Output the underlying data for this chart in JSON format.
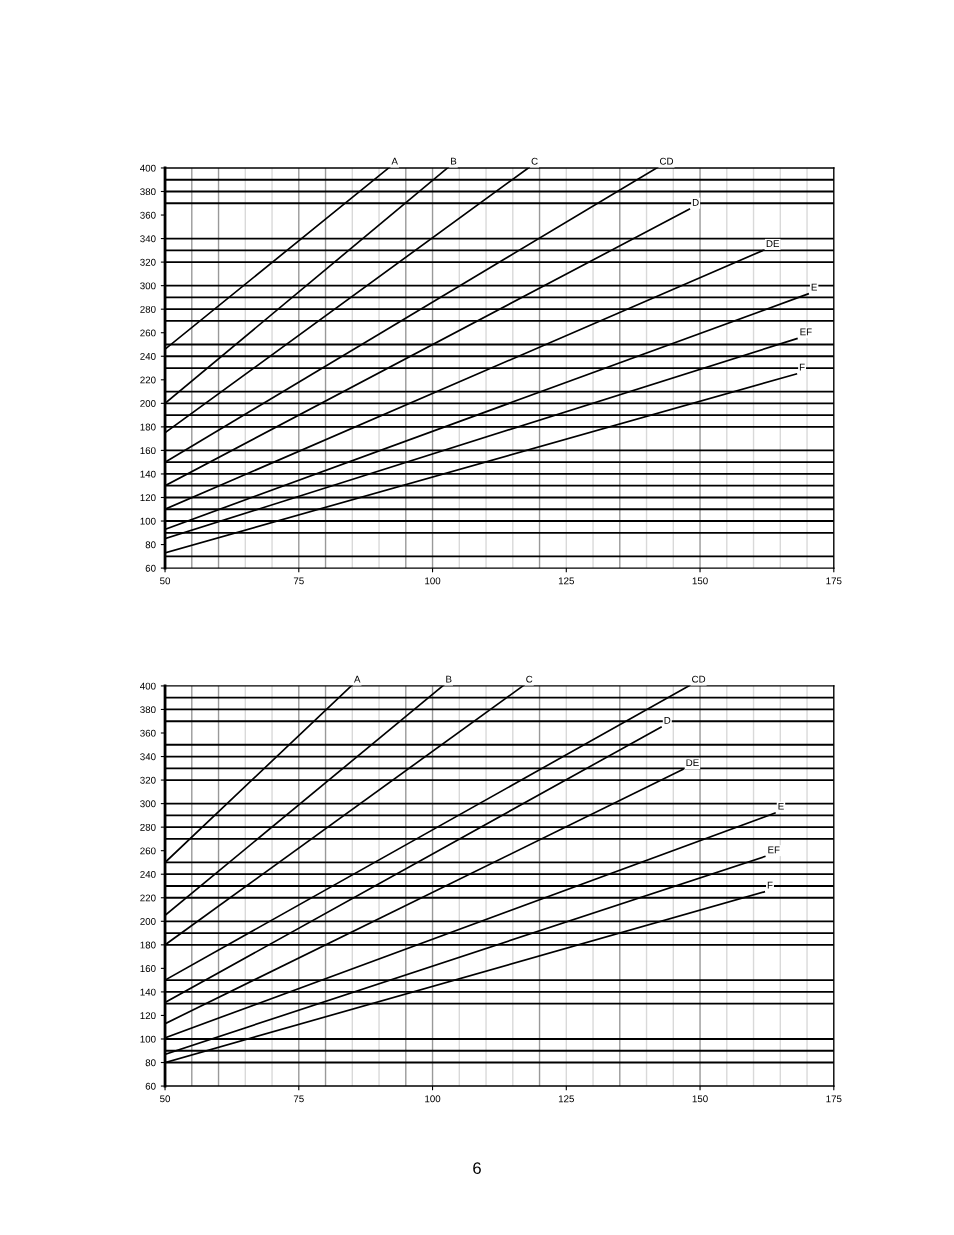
{
  "chart_data": [
    {
      "type": "line",
      "xlim": [
        50,
        175
      ],
      "xticks": [
        50,
        75,
        100,
        125,
        150,
        175
      ],
      "ylim": [
        60,
        400
      ],
      "yticks": [
        60,
        80,
        100,
        120,
        140,
        160,
        180,
        200,
        220,
        240,
        260,
        280,
        300,
        320,
        340,
        360,
        380,
        400
      ],
      "grid": false,
      "legend": false,
      "marker": "none",
      "line_style": "solid",
      "series": [
        {
          "name": "A",
          "color": "#000000",
          "x": [
            50,
            91.8
          ],
          "values": [
            246,
            400
          ]
        },
        {
          "name": "B",
          "color": "#000000",
          "x": [
            50,
            102.8
          ],
          "values": [
            200,
            400
          ]
        },
        {
          "name": "C",
          "color": "#000000",
          "x": [
            50,
            117.9
          ],
          "values": [
            175,
            400
          ]
        },
        {
          "name": "CD",
          "color": "#000000",
          "x": [
            50,
            141.9
          ],
          "values": [
            150,
            400
          ]
        },
        {
          "name": "D",
          "color": "#000000",
          "x": [
            50,
            148
          ],
          "values": [
            130,
            365
          ]
        },
        {
          "name": "DE",
          "color": "#000000",
          "x": [
            50,
            161.8
          ],
          "values": [
            110,
            330
          ]
        },
        {
          "name": "E",
          "color": "#000000",
          "x": [
            50,
            170.2
          ],
          "values": [
            93,
            293
          ]
        },
        {
          "name": "EF",
          "color": "#000000",
          "x": [
            50,
            168.1
          ],
          "values": [
            85,
            255
          ]
        },
        {
          "name": "F",
          "color": "#000000",
          "x": [
            50,
            168
          ],
          "values": [
            73,
            225
          ]
        }
      ],
      "ref_lines": [
        {
          "axis": "x",
          "value": 55,
          "color": "#999999"
        },
        {
          "axis": "x",
          "value": 60,
          "color": "#999999"
        },
        {
          "axis": "x",
          "value": 65,
          "color": "#d9d9d9"
        },
        {
          "axis": "x",
          "value": 70,
          "color": "#d9d9d9"
        },
        {
          "axis": "x",
          "value": 75,
          "color": "#999999"
        },
        {
          "axis": "x",
          "value": 80,
          "color": "#999999"
        },
        {
          "axis": "x",
          "value": 85,
          "color": "#d9d9d9"
        },
        {
          "axis": "x",
          "value": 90,
          "color": "#d9d9d9"
        },
        {
          "axis": "x",
          "value": 95,
          "color": "#999999"
        },
        {
          "axis": "x",
          "value": 100,
          "color": "#999999"
        },
        {
          "axis": "x",
          "value": 105,
          "color": "#d9d9d9"
        },
        {
          "axis": "x",
          "value": 110,
          "color": "#d9d9d9"
        },
        {
          "axis": "x",
          "value": 115,
          "color": "#d9d9d9"
        },
        {
          "axis": "x",
          "value": 120,
          "color": "#999999"
        },
        {
          "axis": "x",
          "value": 125,
          "color": "#d9d9d9"
        },
        {
          "axis": "x",
          "value": 130,
          "color": "#d9d9d9"
        },
        {
          "axis": "x",
          "value": 135,
          "color": "#999999"
        },
        {
          "axis": "x",
          "value": 140,
          "color": "#d9d9d9"
        },
        {
          "axis": "x",
          "value": 145,
          "color": "#d9d9d9"
        },
        {
          "axis": "x",
          "value": 150,
          "color": "#999999"
        },
        {
          "axis": "x",
          "value": 155,
          "color": "#d9d9d9"
        },
        {
          "axis": "x",
          "value": 160,
          "color": "#d9d9d9"
        },
        {
          "axis": "x",
          "value": 165,
          "color": "#d9d9d9"
        },
        {
          "axis": "x",
          "value": 170,
          "color": "#d9d9d9"
        },
        {
          "axis": "y",
          "value": 70,
          "color": "#000000"
        },
        {
          "axis": "y",
          "value": 90,
          "color": "#000000"
        },
        {
          "axis": "y",
          "value": 100,
          "color": "#000000"
        },
        {
          "axis": "y",
          "value": 110,
          "color": "#000000"
        },
        {
          "axis": "y",
          "value": 120,
          "color": "#000000"
        },
        {
          "axis": "y",
          "value": 130,
          "color": "#000000"
        },
        {
          "axis": "y",
          "value": 140,
          "color": "#000000"
        },
        {
          "axis": "y",
          "value": 150,
          "color": "#000000"
        },
        {
          "axis": "y",
          "value": 160,
          "color": "#000000"
        },
        {
          "axis": "y",
          "value": 180,
          "color": "#000000"
        },
        {
          "axis": "y",
          "value": 190,
          "color": "#000000"
        },
        {
          "axis": "y",
          "value": 200,
          "color": "#000000"
        },
        {
          "axis": "y",
          "value": 210,
          "color": "#000000"
        },
        {
          "axis": "y",
          "value": 230,
          "color": "#000000"
        },
        {
          "axis": "y",
          "value": 240,
          "color": "#000000"
        },
        {
          "axis": "y",
          "value": 250,
          "color": "#000000"
        },
        {
          "axis": "y",
          "value": 270,
          "color": "#000000"
        },
        {
          "axis": "y",
          "value": 280,
          "color": "#000000"
        },
        {
          "axis": "y",
          "value": 290,
          "color": "#000000"
        },
        {
          "axis": "y",
          "value": 300,
          "color": "#000000"
        },
        {
          "axis": "y",
          "value": 320,
          "color": "#000000"
        },
        {
          "axis": "y",
          "value": 330,
          "color": "#000000"
        },
        {
          "axis": "y",
          "value": 340,
          "color": "#000000"
        },
        {
          "axis": "y",
          "value": 370,
          "color": "#000000"
        },
        {
          "axis": "y",
          "value": 380,
          "color": "#000000"
        },
        {
          "axis": "y",
          "value": 390,
          "color": "#000000"
        }
      ]
    },
    {
      "type": "line",
      "xlim": [
        50,
        175
      ],
      "xticks": [
        50,
        75,
        100,
        125,
        150,
        175
      ],
      "ylim": [
        60,
        400
      ],
      "yticks": [
        60,
        80,
        100,
        120,
        140,
        160,
        180,
        200,
        220,
        240,
        260,
        280,
        300,
        320,
        340,
        360,
        380,
        400
      ],
      "grid": false,
      "legend": false,
      "marker": "none",
      "line_style": "solid",
      "series": [
        {
          "name": "A",
          "color": "#000000",
          "x": [
            50,
            84.8
          ],
          "values": [
            250,
            400
          ]
        },
        {
          "name": "B",
          "color": "#000000",
          "x": [
            50,
            101.9
          ],
          "values": [
            205,
            400
          ]
        },
        {
          "name": "C",
          "color": "#000000",
          "x": [
            50,
            116.9
          ],
          "values": [
            180,
            400
          ]
        },
        {
          "name": "CD",
          "color": "#000000",
          "x": [
            50,
            147.9
          ],
          "values": [
            150,
            400
          ]
        },
        {
          "name": "D",
          "color": "#000000",
          "x": [
            50,
            142.7
          ],
          "values": [
            131,
            365
          ]
        },
        {
          "name": "DE",
          "color": "#000000",
          "x": [
            50,
            146.8
          ],
          "values": [
            113,
            329
          ]
        },
        {
          "name": "E",
          "color": "#000000",
          "x": [
            50,
            164
          ],
          "values": [
            101,
            292
          ]
        },
        {
          "name": "EF",
          "color": "#000000",
          "x": [
            50,
            162.1
          ],
          "values": [
            87,
            255
          ]
        },
        {
          "name": "F",
          "color": "#000000",
          "x": [
            50,
            162
          ],
          "values": [
            80,
            225
          ]
        }
      ],
      "ref_lines": [
        {
          "axis": "x",
          "value": 55,
          "color": "#999999"
        },
        {
          "axis": "x",
          "value": 60,
          "color": "#999999"
        },
        {
          "axis": "x",
          "value": 65,
          "color": "#d9d9d9"
        },
        {
          "axis": "x",
          "value": 70,
          "color": "#d9d9d9"
        },
        {
          "axis": "x",
          "value": 75,
          "color": "#999999"
        },
        {
          "axis": "x",
          "value": 80,
          "color": "#999999"
        },
        {
          "axis": "x",
          "value": 85,
          "color": "#d9d9d9"
        },
        {
          "axis": "x",
          "value": 90,
          "color": "#d9d9d9"
        },
        {
          "axis": "x",
          "value": 95,
          "color": "#999999"
        },
        {
          "axis": "x",
          "value": 100,
          "color": "#999999"
        },
        {
          "axis": "x",
          "value": 105,
          "color": "#d9d9d9"
        },
        {
          "axis": "x",
          "value": 110,
          "color": "#d9d9d9"
        },
        {
          "axis": "x",
          "value": 115,
          "color": "#d9d9d9"
        },
        {
          "axis": "x",
          "value": 120,
          "color": "#999999"
        },
        {
          "axis": "x",
          "value": 125,
          "color": "#d9d9d9"
        },
        {
          "axis": "x",
          "value": 130,
          "color": "#d9d9d9"
        },
        {
          "axis": "x",
          "value": 135,
          "color": "#999999"
        },
        {
          "axis": "x",
          "value": 140,
          "color": "#d9d9d9"
        },
        {
          "axis": "x",
          "value": 145,
          "color": "#d9d9d9"
        },
        {
          "axis": "x",
          "value": 150,
          "color": "#999999"
        },
        {
          "axis": "x",
          "value": 155,
          "color": "#d9d9d9"
        },
        {
          "axis": "x",
          "value": 160,
          "color": "#d9d9d9"
        },
        {
          "axis": "x",
          "value": 165,
          "color": "#d9d9d9"
        },
        {
          "axis": "x",
          "value": 170,
          "color": "#d9d9d9"
        },
        {
          "axis": "y",
          "value": 80,
          "color": "#000000"
        },
        {
          "axis": "y",
          "value": 90,
          "color": "#000000"
        },
        {
          "axis": "y",
          "value": 100,
          "color": "#000000"
        },
        {
          "axis": "y",
          "value": 130,
          "color": "#000000"
        },
        {
          "axis": "y",
          "value": 140,
          "color": "#000000"
        },
        {
          "axis": "y",
          "value": 150,
          "color": "#000000"
        },
        {
          "axis": "y",
          "value": 180,
          "color": "#000000"
        },
        {
          "axis": "y",
          "value": 190,
          "color": "#000000"
        },
        {
          "axis": "y",
          "value": 200,
          "color": "#000000"
        },
        {
          "axis": "y",
          "value": 220,
          "color": "#000000"
        },
        {
          "axis": "y",
          "value": 230,
          "color": "#000000"
        },
        {
          "axis": "y",
          "value": 240,
          "color": "#000000"
        },
        {
          "axis": "y",
          "value": 250,
          "color": "#000000"
        },
        {
          "axis": "y",
          "value": 270,
          "color": "#000000"
        },
        {
          "axis": "y",
          "value": 280,
          "color": "#000000"
        },
        {
          "axis": "y",
          "value": 290,
          "color": "#000000"
        },
        {
          "axis": "y",
          "value": 300,
          "color": "#000000"
        },
        {
          "axis": "y",
          "value": 320,
          "color": "#000000"
        },
        {
          "axis": "y",
          "value": 330,
          "color": "#000000"
        },
        {
          "axis": "y",
          "value": 340,
          "color": "#000000"
        },
        {
          "axis": "y",
          "value": 350,
          "color": "#000000"
        },
        {
          "axis": "y",
          "value": 370,
          "color": "#000000"
        },
        {
          "axis": "y",
          "value": 380,
          "color": "#000000"
        },
        {
          "axis": "y",
          "value": 390,
          "color": "#000000"
        }
      ],
      "annotations": [
        "6"
      ]
    }
  ]
}
